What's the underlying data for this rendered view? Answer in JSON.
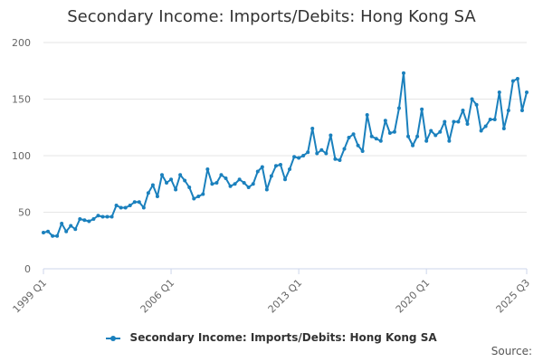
{
  "chart_data": {
    "type": "line",
    "title": "Secondary Income: Imports/Debits: Hong Kong SA",
    "xlabel": "",
    "ylabel": "",
    "ylim": [
      0,
      200
    ],
    "y_ticks": [
      0,
      50,
      100,
      150,
      200
    ],
    "x_tick_labels": [
      "1999 Q1",
      "2006 Q1",
      "2013 Q1",
      "2020 Q1",
      "2025 Q3"
    ],
    "grid": true,
    "legend_position": "bottom",
    "color": "#1a80bd",
    "series": [
      {
        "name": "Secondary Income: Imports/Debits: Hong Kong SA",
        "x": [
          "1999 Q1",
          "1999 Q2",
          "1999 Q3",
          "1999 Q4",
          "2000 Q1",
          "2000 Q2",
          "2000 Q3",
          "2000 Q4",
          "2001 Q1",
          "2001 Q2",
          "2001 Q3",
          "2001 Q4",
          "2002 Q1",
          "2002 Q2",
          "2002 Q3",
          "2002 Q4",
          "2003 Q1",
          "2003 Q2",
          "2003 Q3",
          "2003 Q4",
          "2004 Q1",
          "2004 Q2",
          "2004 Q3",
          "2004 Q4",
          "2005 Q1",
          "2005 Q2",
          "2005 Q3",
          "2005 Q4",
          "2006 Q1",
          "2006 Q2",
          "2006 Q3",
          "2006 Q4",
          "2007 Q1",
          "2007 Q2",
          "2007 Q3",
          "2007 Q4",
          "2008 Q1",
          "2008 Q2",
          "2008 Q3",
          "2008 Q4",
          "2009 Q1",
          "2009 Q2",
          "2009 Q3",
          "2009 Q4",
          "2010 Q1",
          "2010 Q2",
          "2010 Q3",
          "2010 Q4",
          "2011 Q1",
          "2011 Q2",
          "2011 Q3",
          "2011 Q4",
          "2012 Q1",
          "2012 Q2",
          "2012 Q3",
          "2012 Q4",
          "2013 Q1",
          "2013 Q2",
          "2013 Q3",
          "2013 Q4",
          "2014 Q1",
          "2014 Q2",
          "2014 Q3",
          "2014 Q4",
          "2015 Q1",
          "2015 Q2",
          "2015 Q3",
          "2015 Q4",
          "2016 Q1",
          "2016 Q2",
          "2016 Q3",
          "2016 Q4",
          "2017 Q1",
          "2017 Q2",
          "2017 Q3",
          "2017 Q4",
          "2018 Q1",
          "2018 Q2",
          "2018 Q3",
          "2018 Q4",
          "2019 Q1",
          "2019 Q2",
          "2019 Q3",
          "2019 Q4",
          "2020 Q1",
          "2020 Q2",
          "2020 Q3",
          "2020 Q4",
          "2021 Q1",
          "2021 Q2",
          "2021 Q3",
          "2021 Q4",
          "2022 Q1",
          "2022 Q2",
          "2022 Q3",
          "2022 Q4",
          "2023 Q1",
          "2023 Q2",
          "2023 Q3",
          "2023 Q4",
          "2024 Q1",
          "2024 Q2",
          "2024 Q3",
          "2024 Q4",
          "2025 Q1",
          "2025 Q2",
          "2025 Q3"
        ],
        "values": [
          32,
          33,
          29,
          29,
          40,
          33,
          38,
          35,
          44,
          43,
          42,
          44,
          47,
          46,
          46,
          46,
          56,
          54,
          54,
          56,
          59,
          59,
          54,
          67,
          74,
          64,
          83,
          76,
          79,
          70,
          83,
          78,
          72,
          62,
          64,
          66,
          88,
          75,
          76,
          83,
          80,
          73,
          75,
          79,
          76,
          72,
          75,
          86,
          90,
          70,
          82,
          91,
          92,
          79,
          88,
          99,
          98,
          100,
          103,
          124,
          102,
          105,
          102,
          118,
          97,
          96,
          106,
          116,
          119,
          109,
          104,
          136,
          117,
          115,
          113,
          131,
          120,
          121,
          142,
          173,
          117,
          109,
          117,
          141,
          113,
          122,
          118,
          121,
          130,
          113,
          130,
          130,
          140,
          128,
          150,
          145,
          122,
          126,
          132,
          132,
          156,
          124,
          140,
          166,
          168,
          140,
          156
        ]
      }
    ]
  },
  "legend": {
    "label": "Secondary Income: Imports/Debits: Hong Kong SA"
  },
  "source_text": "Source:"
}
